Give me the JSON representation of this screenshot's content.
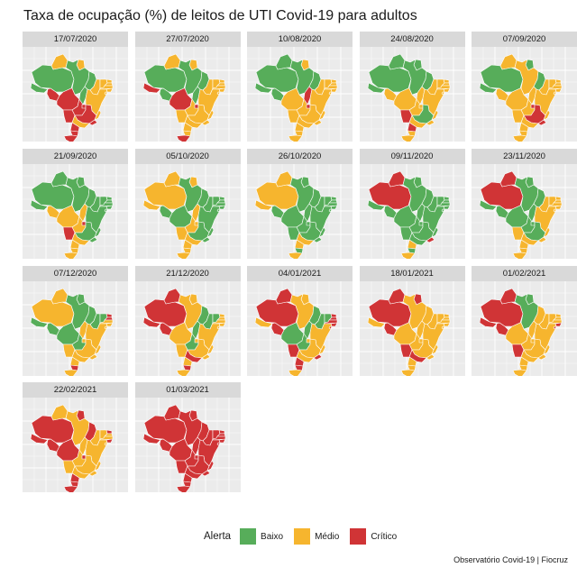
{
  "title": "Taxa de ocupação (%) de leitos de UTI Covid-19 para adultos",
  "caption": "Observatório Covid-19 | Fiocruz",
  "legend": {
    "title": "Alerta",
    "items": [
      {
        "key": "B",
        "label": "Baixo",
        "color": "#57ad5a"
      },
      {
        "key": "M",
        "label": "Médio",
        "color": "#f6b52e"
      },
      {
        "key": "C",
        "label": "Crítico",
        "color": "#d03436"
      }
    ]
  },
  "region_order": [
    "AM",
    "RR",
    "AP",
    "PA",
    "AC",
    "RO",
    "MT",
    "TO",
    "MA",
    "PI",
    "CE",
    "RN",
    "PB",
    "PE",
    "AL",
    "SE",
    "BA",
    "GO",
    "DF",
    "MS",
    "MG",
    "ES",
    "RJ",
    "SP",
    "PR",
    "SC",
    "RS"
  ],
  "panels": [
    {
      "date": "17/07/2020",
      "alerts": "BMMBBCCBBMMMMMMMMCCCCMCMCCC"
    },
    {
      "date": "27/07/2020",
      "alerts": "BMMBCBCBBMMMMMMMMMCMMMMMMMC"
    },
    {
      "date": "10/08/2020",
      "alerts": "BBMBBBMCBMMMMMMMMMCMMMMMMMM"
    },
    {
      "date": "24/08/2020",
      "alerts": "BBBBBMMMBMMMMMMMMMMCBMMMCMM"
    },
    {
      "date": "07/09/2020",
      "alerts": "BMBMBMMMBMMMMMMMMMCMCMCMMMM"
    },
    {
      "date": "21/09/2020",
      "alerts": "BBBBBMMMBBBBBBBBBMCCBBBMMMM"
    },
    {
      "date": "05/10/2020",
      "alerts": "MMMBMBBMBBBBBBBBBMMMBBBMMMM"
    },
    {
      "date": "26/10/2020",
      "alerts": "MMBBMBBBBBBBBBBBBBBBBBBMMBM"
    },
    {
      "date": "09/11/2020",
      "alerts": "CCBBBBBBBBBBBBBBBBBBBBCBMBM"
    },
    {
      "date": "23/11/2020",
      "alerts": "CCBBBBBBBMMMMMMMMBBMBMMMMMM"
    },
    {
      "date": "07/12/2020",
      "alerts": "MMBBBBBMBBBCCMMMMBMMMMMMMCM"
    },
    {
      "date": "21/12/2020",
      "alerts": "CCMMCCMBBBBMMMMMMBMMMMMCMCM"
    },
    {
      "date": "04/01/2021",
      "alerts": "CCMMMCBBBBBCCCCCMBMCMMCMCCM"
    },
    {
      "date": "18/01/2021",
      "alerts": "CCCMMCMMMMMMMMMMMMMCMMMCMMM"
    },
    {
      "date": "01/02/2021",
      "alerts": "CCBBCCMMMMMMMMCCMMMCMMMMMMM"
    },
    {
      "date": "22/02/2021",
      "alerts": "CMCMCCCMCMMCMMCMMMCMMMMMCCC"
    },
    {
      "date": "01/03/2021",
      "alerts": "CCCCCCCCCCCCCCCCCCCCCCCCCCC"
    }
  ]
}
